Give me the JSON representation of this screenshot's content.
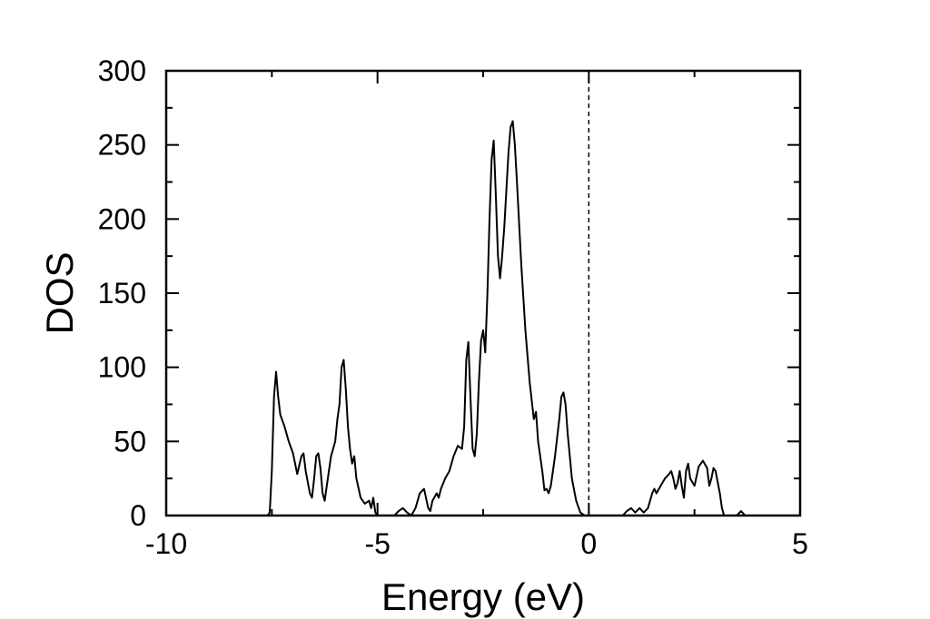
{
  "chart_data": {
    "type": "line",
    "title": "",
    "xlabel": "Energy (eV)",
    "ylabel": "DOS",
    "xlim": [
      -10,
      5
    ],
    "ylim": [
      0,
      300
    ],
    "xticks": [
      -10,
      -5,
      0,
      5
    ],
    "yticks": [
      0,
      50,
      100,
      150,
      200,
      250,
      300
    ],
    "xtick_labels": [
      "-10",
      "-5",
      "0",
      "5"
    ],
    "ytick_labels": [
      "0",
      "50",
      "100",
      "150",
      "200",
      "250",
      "300"
    ],
    "grid": false,
    "legend": "none",
    "fermi_level": 0,
    "line_color": "#000000",
    "series": [
      {
        "points": [
          [
            -10,
            0
          ],
          [
            -7.6,
            0
          ],
          [
            -7.55,
            2
          ],
          [
            -7.5,
            30
          ],
          [
            -7.45,
            80
          ],
          [
            -7.4,
            97
          ],
          [
            -7.35,
            80
          ],
          [
            -7.3,
            68
          ],
          [
            -7.2,
            60
          ],
          [
            -7.1,
            50
          ],
          [
            -7.0,
            42
          ],
          [
            -6.9,
            28
          ],
          [
            -6.8,
            40
          ],
          [
            -6.75,
            42
          ],
          [
            -6.7,
            30
          ],
          [
            -6.6,
            15
          ],
          [
            -6.55,
            12
          ],
          [
            -6.5,
            25
          ],
          [
            -6.45,
            40
          ],
          [
            -6.4,
            42
          ],
          [
            -6.35,
            32
          ],
          [
            -6.3,
            15
          ],
          [
            -6.25,
            10
          ],
          [
            -6.2,
            20
          ],
          [
            -6.1,
            40
          ],
          [
            -6.0,
            50
          ],
          [
            -5.95,
            65
          ],
          [
            -5.9,
            75
          ],
          [
            -5.85,
            100
          ],
          [
            -5.8,
            105
          ],
          [
            -5.75,
            85
          ],
          [
            -5.7,
            60
          ],
          [
            -5.65,
            45
          ],
          [
            -5.6,
            35
          ],
          [
            -5.55,
            40
          ],
          [
            -5.5,
            25
          ],
          [
            -5.4,
            12
          ],
          [
            -5.3,
            8
          ],
          [
            -5.2,
            10
          ],
          [
            -5.15,
            5
          ],
          [
            -5.1,
            12
          ],
          [
            -5.05,
            2
          ],
          [
            -5.0,
            0
          ],
          [
            -4.6,
            0
          ],
          [
            -4.5,
            3
          ],
          [
            -4.4,
            5
          ],
          [
            -4.3,
            2
          ],
          [
            -4.2,
            0
          ],
          [
            -4.1,
            5
          ],
          [
            -4.0,
            15
          ],
          [
            -3.9,
            18
          ],
          [
            -3.8,
            5
          ],
          [
            -3.75,
            3
          ],
          [
            -3.7,
            10
          ],
          [
            -3.6,
            15
          ],
          [
            -3.55,
            12
          ],
          [
            -3.5,
            18
          ],
          [
            -3.4,
            25
          ],
          [
            -3.3,
            30
          ],
          [
            -3.2,
            40
          ],
          [
            -3.1,
            47
          ],
          [
            -3.0,
            45
          ],
          [
            -2.95,
            60
          ],
          [
            -2.9,
            105
          ],
          [
            -2.85,
            117
          ],
          [
            -2.8,
            80
          ],
          [
            -2.75,
            45
          ],
          [
            -2.7,
            40
          ],
          [
            -2.65,
            55
          ],
          [
            -2.6,
            90
          ],
          [
            -2.55,
            118
          ],
          [
            -2.5,
            125
          ],
          [
            -2.45,
            110
          ],
          [
            -2.4,
            150
          ],
          [
            -2.35,
            200
          ],
          [
            -2.3,
            240
          ],
          [
            -2.25,
            253
          ],
          [
            -2.2,
            215
          ],
          [
            -2.15,
            175
          ],
          [
            -2.1,
            160
          ],
          [
            -2.05,
            175
          ],
          [
            -2.0,
            195
          ],
          [
            -1.95,
            220
          ],
          [
            -1.9,
            245
          ],
          [
            -1.85,
            262
          ],
          [
            -1.8,
            266
          ],
          [
            -1.75,
            250
          ],
          [
            -1.7,
            225
          ],
          [
            -1.6,
            170
          ],
          [
            -1.5,
            125
          ],
          [
            -1.4,
            90
          ],
          [
            -1.3,
            65
          ],
          [
            -1.25,
            70
          ],
          [
            -1.2,
            50
          ],
          [
            -1.1,
            30
          ],
          [
            -1.05,
            17
          ],
          [
            -1.0,
            18
          ],
          [
            -0.95,
            15
          ],
          [
            -0.9,
            20
          ],
          [
            -0.8,
            40
          ],
          [
            -0.7,
            65
          ],
          [
            -0.65,
            80
          ],
          [
            -0.6,
            83
          ],
          [
            -0.55,
            75
          ],
          [
            -0.5,
            55
          ],
          [
            -0.4,
            25
          ],
          [
            -0.3,
            10
          ],
          [
            -0.2,
            2
          ],
          [
            -0.1,
            0
          ],
          [
            0.8,
            0
          ],
          [
            0.9,
            3
          ],
          [
            1.0,
            5
          ],
          [
            1.1,
            2
          ],
          [
            1.2,
            5
          ],
          [
            1.3,
            2
          ],
          [
            1.4,
            5
          ],
          [
            1.5,
            15
          ],
          [
            1.55,
            18
          ],
          [
            1.6,
            15
          ],
          [
            1.7,
            20
          ],
          [
            1.8,
            25
          ],
          [
            1.9,
            28
          ],
          [
            1.95,
            30
          ],
          [
            2.0,
            25
          ],
          [
            2.05,
            18
          ],
          [
            2.1,
            22
          ],
          [
            2.15,
            30
          ],
          [
            2.2,
            20
          ],
          [
            2.25,
            12
          ],
          [
            2.3,
            30
          ],
          [
            2.35,
            35
          ],
          [
            2.4,
            25
          ],
          [
            2.5,
            20
          ],
          [
            2.6,
            33
          ],
          [
            2.7,
            37
          ],
          [
            2.8,
            32
          ],
          [
            2.85,
            20
          ],
          [
            2.9,
            25
          ],
          [
            2.95,
            32
          ],
          [
            3.0,
            30
          ],
          [
            3.1,
            15
          ],
          [
            3.15,
            5
          ],
          [
            3.2,
            0
          ],
          [
            3.5,
            0
          ],
          [
            3.6,
            3
          ],
          [
            3.7,
            0
          ],
          [
            5,
            0
          ]
        ]
      }
    ]
  }
}
